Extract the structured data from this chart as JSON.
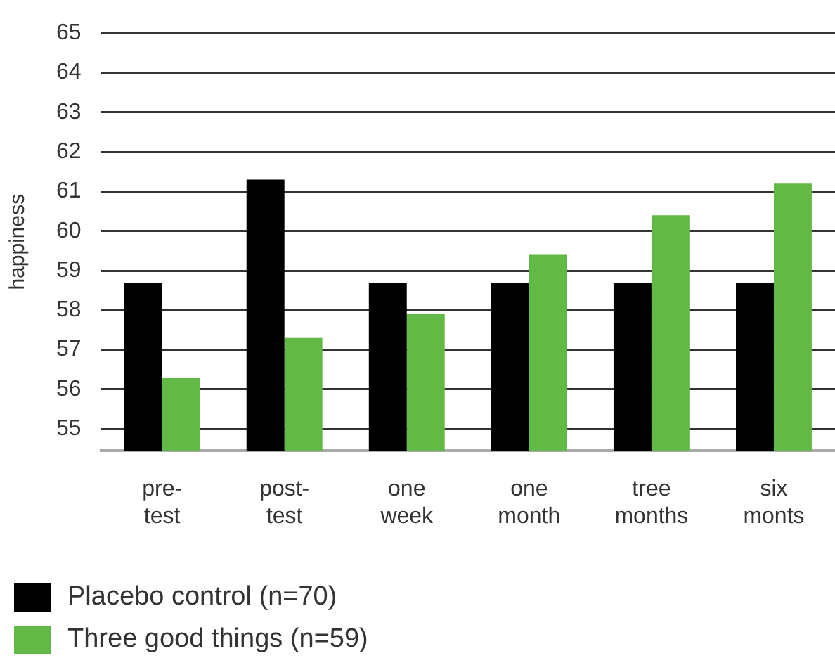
{
  "chart_data": {
    "type": "bar",
    "ylabel": "happiness",
    "categories": [
      "pre-\ntest",
      "post-\ntest",
      "one\nweek",
      "one\nmonth",
      "tree\nmonths",
      "six\nmonts"
    ],
    "series": [
      {
        "name": "Placebo control (n=70)",
        "color": "#000000",
        "values": [
          58.7,
          61.3,
          58.7,
          58.7,
          58.7,
          58.7
        ]
      },
      {
        "name": "Three good things (n=59)",
        "color": "#62b946",
        "values": [
          56.3,
          57.3,
          57.9,
          59.4,
          60.4,
          61.2
        ]
      }
    ],
    "ylim": [
      54.45,
      65
    ],
    "yticks": [
      55,
      56,
      57,
      58,
      59,
      60,
      61,
      62,
      63,
      64,
      65
    ],
    "grid": "y",
    "legend": "bottom left"
  }
}
